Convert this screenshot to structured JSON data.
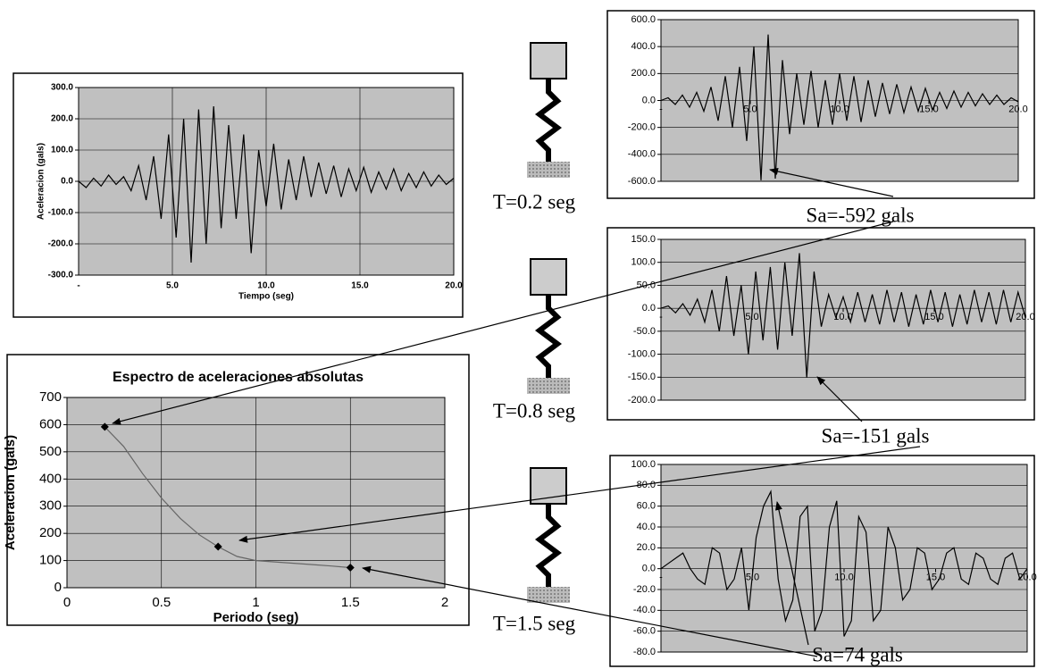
{
  "chart_data": [
    {
      "type": "line",
      "xlabel": "Tiempo (seg)",
      "ylabel": "Aceleracion (gals)",
      "grid": "both",
      "xlim": [
        0,
        20
      ],
      "xticks": [
        {
          "value": 0,
          "label": "-"
        },
        {
          "value": 5,
          "label": "5.0"
        },
        {
          "value": 10,
          "label": "10.0"
        },
        {
          "value": 15,
          "label": "15.0"
        },
        {
          "value": 20,
          "label": "20.0"
        }
      ],
      "ylim": [
        -300,
        300
      ],
      "yticks": [
        {
          "value": 300,
          "label": "300.0"
        },
        {
          "value": 200,
          "label": "200.0"
        },
        {
          "value": 100,
          "label": "100.0"
        },
        {
          "value": 0,
          "label": "0.0"
        },
        {
          "value": -100,
          "label": "-100.0"
        },
        {
          "value": -200,
          "label": "-200.0"
        },
        {
          "value": -300,
          "label": "-300.0"
        }
      ],
      "series": [
        {
          "style": "line",
          "color": "#000000",
          "x": [
            0,
            0.4,
            0.8,
            1.2,
            1.6,
            2,
            2.4,
            2.8,
            3.2,
            3.6,
            4,
            4.4,
            4.8,
            5.2,
            5.6,
            6,
            6.4,
            6.8,
            7.2,
            7.6,
            8,
            8.4,
            8.8,
            9.2,
            9.6,
            10,
            10.4,
            10.8,
            11.2,
            11.6,
            12,
            12.4,
            12.8,
            13.2,
            13.6,
            14,
            14.4,
            14.8,
            15.2,
            15.6,
            16,
            16.4,
            16.8,
            17.2,
            17.6,
            18,
            18.4,
            18.8,
            19.2,
            19.6,
            20
          ],
          "values": [
            0,
            -20,
            10,
            -15,
            20,
            -10,
            15,
            -30,
            50,
            -60,
            80,
            -120,
            150,
            -180,
            200,
            -260,
            230,
            -200,
            240,
            -150,
            180,
            -120,
            150,
            -230,
            100,
            -80,
            120,
            -90,
            70,
            -60,
            80,
            -50,
            60,
            -40,
            50,
            -50,
            40,
            -30,
            45,
            -35,
            30,
            -25,
            40,
            -30,
            25,
            -20,
            30,
            -15,
            20,
            -10,
            10
          ]
        }
      ]
    },
    {
      "type": "line",
      "title": "Espectro de aceleraciones absolutas",
      "xlabel": "Periodo (seg)",
      "ylabel": "Aceleracion (gals)",
      "grid": "both",
      "xlim": [
        0,
        2
      ],
      "xticks": [
        0,
        0.5,
        1,
        1.5,
        2
      ],
      "ylim": [
        0,
        700
      ],
      "yticks": [
        0,
        100,
        200,
        300,
        400,
        500,
        600,
        700
      ],
      "series": [
        {
          "style": "line",
          "color": "#666666",
          "x": [
            0.2,
            0.3,
            0.4,
            0.5,
            0.6,
            0.7,
            0.8,
            0.9,
            1.0,
            1.1,
            1.2,
            1.3,
            1.4,
            1.5
          ],
          "values": [
            592,
            520,
            420,
            330,
            255,
            195,
            151,
            115,
            100,
            95,
            90,
            85,
            80,
            74
          ]
        },
        {
          "style": "markers",
          "color": "#000000",
          "x": [
            0.2,
            0.8,
            1.5
          ],
          "values": [
            592,
            151,
            74
          ]
        }
      ]
    },
    {
      "type": "line",
      "period_label": "T=0.2 seg",
      "sa_label": "Sa=-592 gals",
      "grid": "y",
      "x_labels_at_zero": true,
      "xlim": [
        0,
        20
      ],
      "xticks": [
        {
          "value": 0,
          "label": "-"
        },
        {
          "value": 5,
          "label": "5.0"
        },
        {
          "value": 10,
          "label": "10.0"
        },
        {
          "value": 15,
          "label": "15.0"
        },
        {
          "value": 20,
          "label": "20.0"
        }
      ],
      "ylim": [
        -600,
        600
      ],
      "yticks": [
        {
          "value": 600,
          "label": "600.0"
        },
        {
          "value": 400,
          "label": "400.0"
        },
        {
          "value": 200,
          "label": "200.0"
        },
        {
          "value": 0,
          "label": "0.0"
        },
        {
          "value": -200,
          "label": "-200.0"
        },
        {
          "value": -400,
          "label": "-400.0"
        },
        {
          "value": -600,
          "label": "-600.0"
        }
      ],
      "series": [
        {
          "style": "line",
          "color": "#000000",
          "x": [
            0,
            0.4,
            0.8,
            1.2,
            1.6,
            2,
            2.4,
            2.8,
            3.2,
            3.6,
            4,
            4.4,
            4.8,
            5.2,
            5.6,
            6,
            6.4,
            6.8,
            7.2,
            7.6,
            8,
            8.4,
            8.8,
            9.2,
            9.6,
            10,
            10.4,
            10.8,
            11.2,
            11.6,
            12,
            12.4,
            12.8,
            13.2,
            13.6,
            14,
            14.4,
            14.8,
            15.2,
            15.6,
            16,
            16.4,
            16.8,
            17.2,
            17.6,
            18,
            18.4,
            18.8,
            19.2,
            19.6,
            20
          ],
          "values": [
            0,
            20,
            -30,
            40,
            -50,
            60,
            -80,
            100,
            -150,
            180,
            -200,
            250,
            -300,
            400,
            -592,
            490,
            -580,
            300,
            -250,
            200,
            -180,
            220,
            -200,
            150,
            -180,
            200,
            -150,
            180,
            -160,
            150,
            -120,
            130,
            -100,
            120,
            -90,
            100,
            -80,
            90,
            -70,
            60,
            -60,
            70,
            -50,
            60,
            -40,
            50,
            -30,
            40,
            -30,
            20,
            -10
          ]
        }
      ]
    },
    {
      "type": "line",
      "period_label": "T=0.8 seg",
      "sa_label": "Sa=-151 gals",
      "grid": "y",
      "x_labels_at_zero": true,
      "xlim": [
        0,
        20
      ],
      "xticks": [
        {
          "value": 0,
          "label": "-"
        },
        {
          "value": 5,
          "label": "5.0"
        },
        {
          "value": 10,
          "label": "10.0"
        },
        {
          "value": 15,
          "label": "15.0"
        },
        {
          "value": 20,
          "label": "20.0"
        }
      ],
      "ylim": [
        -200,
        150
      ],
      "yticks": [
        {
          "value": 150,
          "label": "150.0"
        },
        {
          "value": 100,
          "label": "100.0"
        },
        {
          "value": 50,
          "label": "50.0"
        },
        {
          "value": 0,
          "label": "0.0"
        },
        {
          "value": -50,
          "label": "-50.0"
        },
        {
          "value": -100,
          "label": "-100.0"
        },
        {
          "value": -150,
          "label": "-150.0"
        },
        {
          "value": -200,
          "label": "-200.0"
        }
      ],
      "series": [
        {
          "style": "line",
          "color": "#000000",
          "x": [
            0,
            0.4,
            0.8,
            1.2,
            1.6,
            2,
            2.4,
            2.8,
            3.2,
            3.6,
            4,
            4.4,
            4.8,
            5.2,
            5.6,
            6,
            6.4,
            6.8,
            7.2,
            7.6,
            8,
            8.4,
            8.8,
            9.2,
            9.6,
            10,
            10.4,
            10.8,
            11.2,
            11.6,
            12,
            12.4,
            12.8,
            13.2,
            13.6,
            14,
            14.4,
            14.8,
            15.2,
            15.6,
            16,
            16.4,
            16.8,
            17.2,
            17.6,
            18,
            18.4,
            18.8,
            19.2,
            19.6,
            20
          ],
          "values": [
            0,
            5,
            -10,
            10,
            -15,
            20,
            -30,
            40,
            -50,
            70,
            -60,
            50,
            -100,
            80,
            -70,
            90,
            -90,
            100,
            -60,
            120,
            -151,
            80,
            -40,
            30,
            -20,
            25,
            -30,
            35,
            -30,
            30,
            -35,
            40,
            -30,
            35,
            -40,
            30,
            -35,
            40,
            -30,
            35,
            -40,
            30,
            -35,
            40,
            -30,
            35,
            -35,
            40,
            -30,
            35,
            -20
          ]
        }
      ]
    },
    {
      "type": "line",
      "period_label": "T=1.5 seg",
      "sa_label": "Sa=74 gals",
      "grid": "y",
      "x_labels_at_zero": true,
      "xlim": [
        0,
        20
      ],
      "xticks": [
        {
          "value": 0,
          "label": "-"
        },
        {
          "value": 5,
          "label": "5.0"
        },
        {
          "value": 10,
          "label": "10.0"
        },
        {
          "value": 15,
          "label": "15.0"
        },
        {
          "value": 20,
          "label": "20.0"
        }
      ],
      "ylim": [
        -80,
        100
      ],
      "yticks": [
        {
          "value": 100,
          "label": "100.0"
        },
        {
          "value": 80,
          "label": "80.0"
        },
        {
          "value": 60,
          "label": "60.0"
        },
        {
          "value": 40,
          "label": "40.0"
        },
        {
          "value": 20,
          "label": "20.0"
        },
        {
          "value": 0,
          "label": "0.0"
        },
        {
          "value": -20,
          "label": "-20.0"
        },
        {
          "value": -40,
          "label": "-40.0"
        },
        {
          "value": -60,
          "label": "-60.0"
        },
        {
          "value": -80,
          "label": "-80.0"
        }
      ],
      "series": [
        {
          "style": "line",
          "color": "#000000",
          "x": [
            0,
            0.4,
            0.8,
            1.2,
            1.6,
            2,
            2.4,
            2.8,
            3.2,
            3.6,
            4,
            4.4,
            4.8,
            5.2,
            5.6,
            6,
            6.4,
            6.8,
            7.2,
            7.6,
            8,
            8.4,
            8.8,
            9.2,
            9.6,
            10,
            10.4,
            10.8,
            11.2,
            11.6,
            12,
            12.4,
            12.8,
            13.2,
            13.6,
            14,
            14.4,
            14.8,
            15.2,
            15.6,
            16,
            16.4,
            16.8,
            17.2,
            17.6,
            18,
            18.4,
            18.8,
            19.2,
            19.6,
            20
          ],
          "values": [
            0,
            5,
            10,
            15,
            0,
            -10,
            -15,
            20,
            15,
            -20,
            -10,
            20,
            -40,
            30,
            60,
            74,
            -10,
            -50,
            -30,
            50,
            60,
            -60,
            -40,
            40,
            65,
            -65,
            -50,
            50,
            35,
            -50,
            -40,
            40,
            20,
            -30,
            -20,
            20,
            15,
            -20,
            -10,
            15,
            20,
            -10,
            -15,
            15,
            10,
            -10,
            -15,
            10,
            15,
            -10,
            0
          ]
        }
      ]
    }
  ]
}
